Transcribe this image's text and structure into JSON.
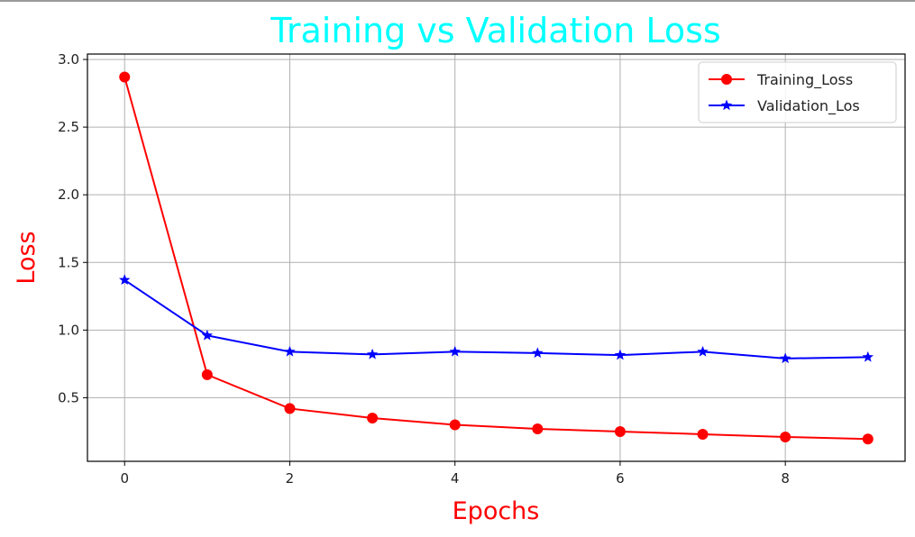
{
  "chart_data": {
    "type": "line",
    "title": "Training vs Validation Loss",
    "title_color": "#00ffff",
    "xlabel": "Epochs",
    "ylabel": "Loss",
    "label_color": "#ff0000",
    "x": [
      0,
      1,
      2,
      3,
      4,
      5,
      6,
      7,
      8,
      9
    ],
    "xlim": [
      -0.45,
      9.45
    ],
    "ylim": [
      0.03,
      3.04
    ],
    "xticks": [
      0,
      2,
      4,
      6,
      8
    ],
    "yticks": [
      0.5,
      1.0,
      1.5,
      2.0,
      2.5,
      3.0
    ],
    "xtick_labels": [
      "0",
      "2",
      "4",
      "6",
      "8"
    ],
    "ytick_labels": [
      "0.5",
      "1.0",
      "1.5",
      "2.0",
      "2.5",
      "3.0"
    ],
    "grid": true,
    "legend_position": "top-right",
    "series": [
      {
        "name": "Training_Loss",
        "color": "#ff0000",
        "marker": "circle",
        "values": [
          2.87,
          0.67,
          0.42,
          0.35,
          0.3,
          0.27,
          0.25,
          0.23,
          0.21,
          0.195
        ]
      },
      {
        "name": "Validation_Los",
        "color": "#0000ff",
        "marker": "star",
        "values": [
          1.37,
          0.96,
          0.84,
          0.82,
          0.84,
          0.83,
          0.815,
          0.84,
          0.79,
          0.8
        ]
      }
    ]
  }
}
